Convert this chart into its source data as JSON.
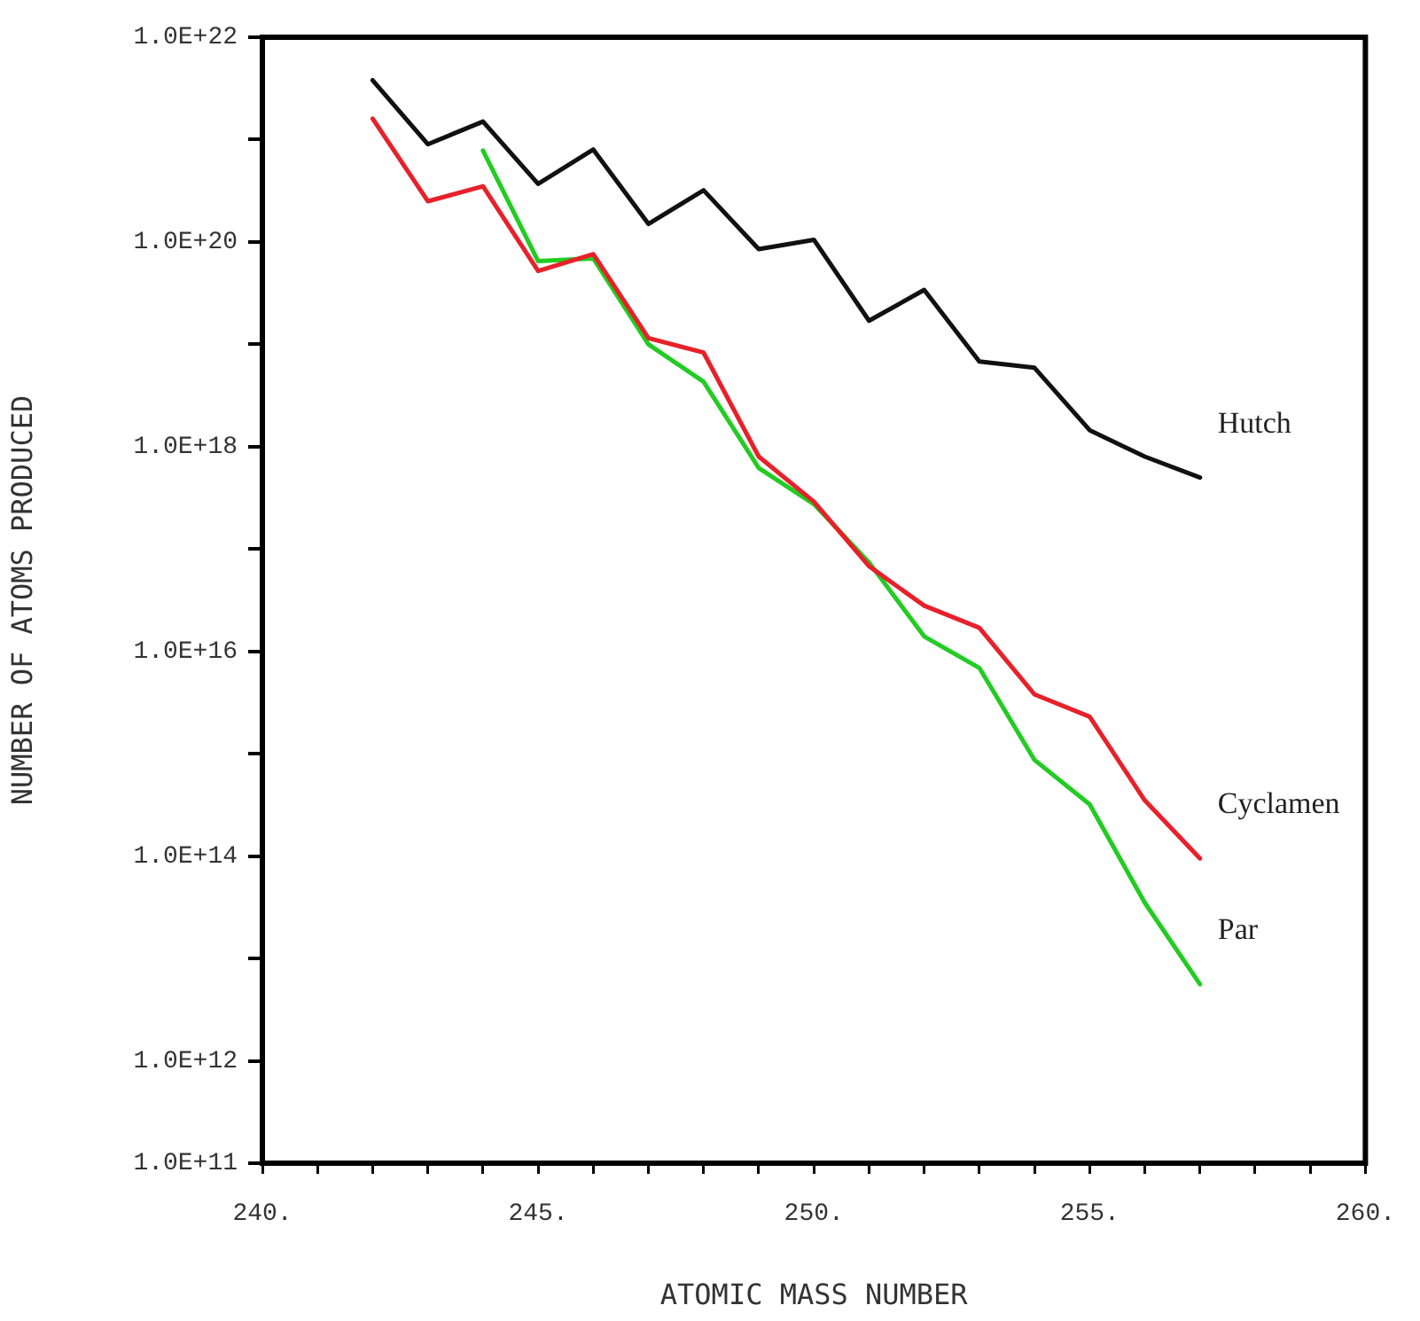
{
  "chart_data": {
    "type": "line",
    "xlabel": "ATOMIC MASS NUMBER",
    "ylabel": "NUMBER OF ATOMS PRODUCED",
    "log": "y",
    "line_style": "solid",
    "marker": "none",
    "xlim": [
      240,
      260
    ],
    "xticks": [
      {
        "value": 240,
        "label": "240."
      },
      {
        "value": 241,
        "label": null
      },
      {
        "value": 242,
        "label": null
      },
      {
        "value": 243,
        "label": null
      },
      {
        "value": 244,
        "label": null
      },
      {
        "value": 245,
        "label": "245."
      },
      {
        "value": 246,
        "label": null
      },
      {
        "value": 247,
        "label": null
      },
      {
        "value": 248,
        "label": null
      },
      {
        "value": 249,
        "label": null
      },
      {
        "value": 250,
        "label": "250."
      },
      {
        "value": 251,
        "label": null
      },
      {
        "value": 252,
        "label": null
      },
      {
        "value": 253,
        "label": null
      },
      {
        "value": 254,
        "label": null
      },
      {
        "value": 255,
        "label": "255."
      },
      {
        "value": 256,
        "label": null
      },
      {
        "value": 257,
        "label": null
      },
      {
        "value": 258,
        "label": null
      },
      {
        "value": 259,
        "label": null
      },
      {
        "value": 260,
        "label": "260."
      }
    ],
    "ylim": [
      100000000000.0,
      1e+22
    ],
    "yticks": [
      {
        "value": 100000000000.0,
        "label": "1.0E+11"
      },
      {
        "value": 1000000000000.0,
        "label": "1.0E+12"
      },
      {
        "value": 10000000000000.0,
        "label": null
      },
      {
        "value": 100000000000000.0,
        "label": "1.0E+14"
      },
      {
        "value": 1000000000000000.0,
        "label": null
      },
      {
        "value": 1e+16,
        "label": "1.0E+16"
      },
      {
        "value": 1e+17,
        "label": null
      },
      {
        "value": 1e+18,
        "label": "1.0E+18"
      },
      {
        "value": 1e+19,
        "label": null
      },
      {
        "value": 1e+20,
        "label": "1.0E+20"
      },
      {
        "value": 1e+21,
        "label": null
      },
      {
        "value": 1e+22,
        "label": "1.0E+22"
      }
    ],
    "x": [
      242,
      243,
      244,
      245,
      246,
      247,
      248,
      249,
      250,
      251,
      252,
      253,
      254,
      255,
      256,
      257
    ],
    "series": [
      {
        "name": "Hutch",
        "color": "#111111",
        "values": [
          3.8e+21,
          9e+20,
          1.5e+21,
          3.7e+20,
          8e+20,
          1.5e+20,
          3.2e+20,
          8.5e+19,
          1.05e+20,
          1.7e+19,
          3.4e+19,
          6.8e+18,
          5.9e+18,
          1.45e+18,
          8e+17,
          5e+17
        ]
      },
      {
        "name": "Cyclamen",
        "color": "#e8202a",
        "values": [
          1.6e+21,
          2.5e+20,
          3.5e+20,
          5.2e+19,
          7.6e+19,
          1.15e+19,
          8.3e+18,
          8e+17,
          2.9e+17,
          6.8e+16,
          2.8e+16,
          1.7e+16,
          3800000000000000.0,
          2300000000000000.0,
          350000000000000.0,
          95000000000000.0
        ]
      },
      {
        "name": "Par",
        "x": [
          244,
          245,
          246,
          247,
          248,
          249,
          250,
          251,
          252,
          253,
          254,
          255,
          256,
          257
        ],
        "color": "#22cc22",
        "values": [
          7.8e+20,
          6.5e+19,
          6.9e+19,
          1e+19,
          4.3e+18,
          6.2e+17,
          2.75e+17,
          7.4e+16,
          1.4e+16,
          6900000000000000.0,
          870000000000000.0,
          320000000000000.0,
          35000000000000.0,
          5600000000000.0
        ]
      }
    ]
  }
}
